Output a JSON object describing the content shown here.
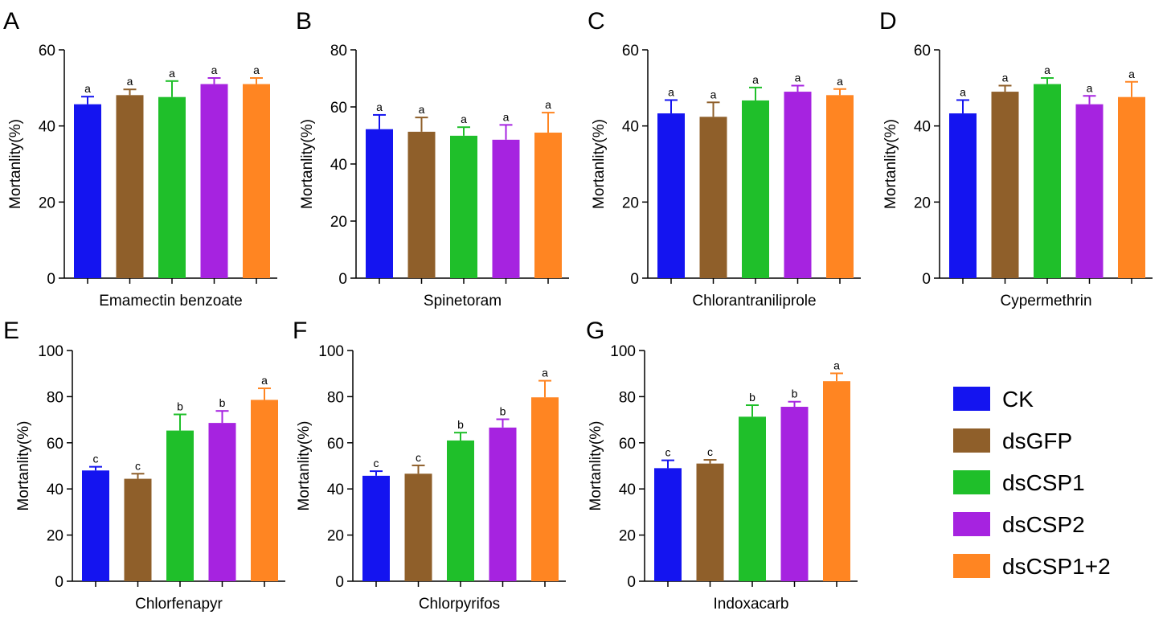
{
  "legend": [
    "CK",
    "dsGFP",
    "dsCSP1",
    "dsCSP2",
    "dsCSP1+2"
  ],
  "colors": [
    "#1414f0",
    "#8f5f2a",
    "#1fbf2a",
    "#a623e0",
    "#ff8522"
  ],
  "chart_data": [
    {
      "type": "bar",
      "panel": "A",
      "xlabel": "Emamectin benzoate",
      "ylabel": "Mortanlity(%)",
      "ylim": [
        0,
        60
      ],
      "yticks": [
        0,
        20,
        40,
        60
      ],
      "categories": [
        "CK",
        "dsGFP",
        "dsCSP1",
        "dsCSP2",
        "dsCSP1+2"
      ],
      "values": [
        45.7,
        48.1,
        47.6,
        51.0,
        51.0
      ],
      "errors": [
        2.0,
        1.5,
        4.2,
        1.6,
        1.6
      ],
      "labels": [
        "a",
        "a",
        "a",
        "a",
        "a"
      ]
    },
    {
      "type": "bar",
      "panel": "B",
      "xlabel": "Spinetoram",
      "ylabel": "Mortanlity(%)",
      "ylim": [
        0,
        80
      ],
      "yticks": [
        0,
        20,
        40,
        60,
        80
      ],
      "categories": [
        "CK",
        "dsGFP",
        "dsCSP1",
        "dsCSP2",
        "dsCSP1+2"
      ],
      "values": [
        52.2,
        51.3,
        49.9,
        48.5,
        51.0
      ],
      "errors": [
        5.0,
        5.0,
        3.0,
        5.2,
        7.0
      ],
      "labels": [
        "a",
        "a",
        "a",
        "a",
        "a"
      ]
    },
    {
      "type": "bar",
      "panel": "C",
      "xlabel": "Chlorantraniliprole",
      "ylabel": "Mortanlity(%)",
      "ylim": [
        0,
        60
      ],
      "yticks": [
        0,
        20,
        40,
        60
      ],
      "categories": [
        "CK",
        "dsGFP",
        "dsCSP1",
        "dsCSP2",
        "dsCSP1+2"
      ],
      "values": [
        43.3,
        42.4,
        46.7,
        49.0,
        48.1
      ],
      "errors": [
        3.5,
        3.8,
        3.4,
        1.6,
        1.6
      ],
      "labels": [
        "a",
        "a",
        "a",
        "a",
        "a"
      ]
    },
    {
      "type": "bar",
      "panel": "D",
      "xlabel": "Cypermethrin",
      "ylabel": "Mortanlity(%)",
      "ylim": [
        0,
        60
      ],
      "yticks": [
        0,
        20,
        40,
        60
      ],
      "categories": [
        "CK",
        "dsGFP",
        "dsCSP1",
        "dsCSP2",
        "dsCSP1+2"
      ],
      "values": [
        43.3,
        49.0,
        51.0,
        45.7,
        47.6
      ],
      "errors": [
        3.5,
        1.6,
        1.6,
        2.2,
        4.0
      ],
      "labels": [
        "a",
        "a",
        "a",
        "a",
        "a"
      ]
    },
    {
      "type": "bar",
      "panel": "E",
      "xlabel": "Chlorfenapyr",
      "ylabel": "Mortanlity(%)",
      "ylim": [
        0,
        100
      ],
      "yticks": [
        0,
        20,
        40,
        60,
        80,
        100
      ],
      "categories": [
        "CK",
        "dsGFP",
        "dsCSP1",
        "dsCSP2",
        "dsCSP1+2"
      ],
      "values": [
        48.0,
        44.4,
        65.3,
        68.6,
        78.6
      ],
      "errors": [
        1.6,
        2.2,
        7.0,
        5.2,
        5.0
      ],
      "labels": [
        "c",
        "c",
        "b",
        "b",
        "a"
      ]
    },
    {
      "type": "bar",
      "panel": "F",
      "xlabel": "Chlorpyrifos",
      "ylabel": "Mortanlity(%)",
      "ylim": [
        0,
        100
      ],
      "yticks": [
        0,
        20,
        40,
        60,
        80,
        100
      ],
      "categories": [
        "CK",
        "dsGFP",
        "dsCSP1",
        "dsCSP2",
        "dsCSP1+2"
      ],
      "values": [
        45.7,
        46.6,
        61.0,
        66.6,
        79.7
      ],
      "errors": [
        2.0,
        3.6,
        3.4,
        3.6,
        7.2
      ],
      "labels": [
        "c",
        "c",
        "b",
        "b",
        "a"
      ]
    },
    {
      "type": "bar",
      "panel": "G",
      "xlabel": "Indoxacarb",
      "ylabel": "Mortanlity(%)",
      "ylim": [
        0,
        100
      ],
      "yticks": [
        0,
        20,
        40,
        60,
        80,
        100
      ],
      "categories": [
        "CK",
        "dsGFP",
        "dsCSP1",
        "dsCSP2",
        "dsCSP1+2"
      ],
      "values": [
        49.0,
        51.0,
        71.3,
        75.6,
        86.7
      ],
      "errors": [
        3.4,
        1.6,
        5.0,
        2.2,
        3.4
      ],
      "labels": [
        "c",
        "c",
        "b",
        "b",
        "a"
      ]
    }
  ]
}
